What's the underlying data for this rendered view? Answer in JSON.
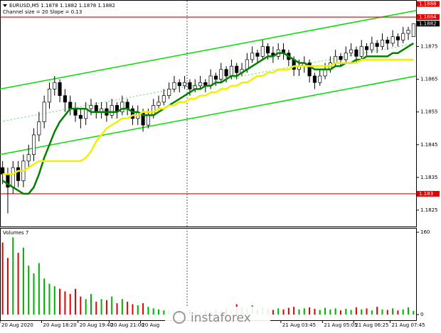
{
  "chart_data": {
    "type": "candlestick",
    "title": "EURUSD,M5  1.1878 1.1882 1.1878 1.1882",
    "subtitle": "Channel size = 20 Slope = 0.13",
    "categories": [
      "20 Aug 2020",
      null,
      null,
      null,
      null,
      null,
      null,
      null,
      "20 Aug 18:20",
      null,
      null,
      null,
      null,
      null,
      null,
      "20 Aug 19:40",
      null,
      null,
      null,
      null,
      null,
      "20 Aug 21:00",
      null,
      null,
      null,
      null,
      null,
      "20 Aug",
      null,
      null,
      null,
      null,
      null,
      null,
      null,
      null,
      null,
      null,
      null,
      null,
      null,
      null,
      null,
      null,
      null,
      null,
      null,
      null,
      null,
      null,
      null,
      null,
      null,
      null,
      "21 Aug 03:45",
      null,
      null,
      null,
      null,
      null,
      null,
      null,
      "21 Aug 05:05",
      null,
      null,
      null,
      null,
      null,
      "21 Aug 06:25",
      null,
      null,
      null,
      null,
      null,
      null,
      "21 Aug 07:45",
      null,
      null,
      null,
      null
    ],
    "open": [
      1.1838,
      1.1836,
      1.1832,
      1.1838,
      1.1834,
      1.184,
      1.1842,
      1.1848,
      1.1852,
      1.1858,
      1.1862,
      1.1864,
      1.186,
      1.1858,
      1.1856,
      1.1854,
      1.1853,
      1.1856,
      1.1857,
      1.1855,
      1.1856,
      1.1854,
      1.1857,
      1.1855,
      1.1858,
      1.1856,
      1.1853,
      1.1855,
      1.1851,
      1.1854,
      1.1857,
      1.1858,
      1.186,
      1.1862,
      1.1864,
      1.1863,
      1.1864,
      1.1862,
      1.1863,
      1.1864,
      1.1863,
      1.1866,
      1.1865,
      1.1868,
      1.1866,
      1.1869,
      1.1867,
      1.1868,
      1.1871,
      1.1873,
      1.1872,
      1.1875,
      1.1873,
      1.1872,
      1.1874,
      1.1873,
      1.1871,
      1.1868,
      1.1869,
      1.187,
      1.1866,
      1.1864,
      1.1866,
      1.1868,
      1.187,
      1.1872,
      1.1871,
      1.1873,
      1.1874,
      1.1872,
      1.1875,
      1.1874,
      1.1876,
      1.1875,
      1.1877,
      1.1876,
      1.1878,
      1.1877,
      1.1879,
      1.1878
    ],
    "high": [
      1.184,
      1.1838,
      1.184,
      1.184,
      1.1842,
      1.1845,
      1.185,
      1.1855,
      1.186,
      1.1864,
      1.1866,
      1.1865,
      1.1862,
      1.186,
      1.1858,
      1.1856,
      1.1858,
      1.1859,
      1.1858,
      1.1858,
      1.1858,
      1.1859,
      1.1858,
      1.186,
      1.1859,
      1.1857,
      1.1857,
      1.1856,
      1.1856,
      1.1859,
      1.186,
      1.1862,
      1.1864,
      1.1866,
      1.1865,
      1.1866,
      1.1865,
      1.1865,
      1.1866,
      1.1865,
      1.1868,
      1.1867,
      1.187,
      1.1869,
      1.1871,
      1.187,
      1.187,
      1.1873,
      1.1875,
      1.1874,
      1.1877,
      1.1876,
      1.1875,
      1.1876,
      1.1876,
      1.1874,
      1.1872,
      1.1871,
      1.1872,
      1.1871,
      1.1867,
      1.1868,
      1.187,
      1.1872,
      1.1874,
      1.1873,
      1.1875,
      1.1876,
      1.1875,
      1.1877,
      1.1876,
      1.1878,
      1.1877,
      1.1879,
      1.1878,
      1.188,
      1.1879,
      1.1881,
      1.1881,
      1.1882
    ],
    "low": [
      1.1833,
      1.1824,
      1.183,
      1.1832,
      1.1832,
      1.1838,
      1.184,
      1.1846,
      1.185,
      1.1856,
      1.186,
      1.1858,
      1.1855,
      1.1854,
      1.1852,
      1.185,
      1.1851,
      1.1854,
      1.1853,
      1.1853,
      1.1852,
      1.1853,
      1.1853,
      1.1854,
      1.1854,
      1.1851,
      1.1851,
      1.1849,
      1.185,
      1.1853,
      1.1856,
      1.1857,
      1.1859,
      1.1861,
      1.1861,
      1.1862,
      1.186,
      1.1861,
      1.1862,
      1.1861,
      1.1862,
      1.1863,
      1.1864,
      1.1864,
      1.1865,
      1.1865,
      1.1866,
      1.1867,
      1.187,
      1.187,
      1.1871,
      1.1871,
      1.187,
      1.1871,
      1.1871,
      1.1869,
      1.1866,
      1.1866,
      1.1867,
      1.1864,
      1.1862,
      1.1863,
      1.1865,
      1.1867,
      1.1869,
      1.1869,
      1.187,
      1.1872,
      1.187,
      1.1871,
      1.1872,
      1.1873,
      1.1873,
      1.1874,
      1.1874,
      1.1875,
      1.1875,
      1.1876,
      1.1877,
      1.1878
    ],
    "close": [
      1.1836,
      1.1832,
      1.1838,
      1.1834,
      1.184,
      1.1842,
      1.1848,
      1.1852,
      1.1858,
      1.1862,
      1.1864,
      1.186,
      1.1858,
      1.1856,
      1.1854,
      1.1853,
      1.1856,
      1.1857,
      1.1855,
      1.1856,
      1.1854,
      1.1857,
      1.1855,
      1.1858,
      1.1856,
      1.1853,
      1.1855,
      1.1851,
      1.1854,
      1.1857,
      1.1858,
      1.186,
      1.1862,
      1.1864,
      1.1863,
      1.1864,
      1.1862,
      1.1863,
      1.1864,
      1.1863,
      1.1866,
      1.1865,
      1.1868,
      1.1866,
      1.1869,
      1.1867,
      1.1868,
      1.1871,
      1.1873,
      1.1872,
      1.1875,
      1.1873,
      1.1872,
      1.1874,
      1.1873,
      1.1871,
      1.1868,
      1.1869,
      1.187,
      1.1866,
      1.1864,
      1.1866,
      1.1868,
      1.187,
      1.1872,
      1.1871,
      1.1873,
      1.1874,
      1.1872,
      1.1875,
      1.1874,
      1.1876,
      1.1875,
      1.1877,
      1.1876,
      1.1878,
      1.1877,
      1.1879,
      1.188,
      1.1882
    ],
    "up_color": "#ffffff",
    "down_color": "#000000",
    "ylim": [
      1.182,
      1.1889
    ],
    "yticks": [
      1.1825,
      1.1835,
      1.1845,
      1.1855,
      1.1865,
      1.1875
    ],
    "moving_averages": [
      {
        "color": "#008000",
        "values": [
          1.1834,
          1.1833,
          1.1832,
          1.1831,
          1.183,
          1.183,
          1.1832,
          1.1836,
          1.1841,
          1.1845,
          1.1849,
          1.1852,
          1.1854,
          1.1856,
          1.1856,
          1.1856,
          1.1856,
          1.1855,
          1.1855,
          1.1855,
          1.1855,
          1.1855,
          1.1855,
          1.1856,
          1.1856,
          1.1855,
          1.1855,
          1.1854,
          1.1854,
          1.1854,
          1.1855,
          1.1856,
          1.1857,
          1.1858,
          1.1859,
          1.186,
          1.1861,
          1.1862,
          1.1862,
          1.1863,
          1.1863,
          1.1864,
          1.1864,
          1.1865,
          1.1866,
          1.1866,
          1.1867,
          1.1868,
          1.1869,
          1.187,
          1.1871,
          1.1872,
          1.1872,
          1.1873,
          1.1873,
          1.1872,
          1.1871,
          1.187,
          1.187,
          1.1869,
          1.1868,
          1.1868,
          1.1868,
          1.1868,
          1.1869,
          1.1869,
          1.187,
          1.187,
          1.1871,
          1.1871,
          1.1872,
          1.1872,
          1.1872,
          1.1872,
          1.1872,
          1.1873,
          1.1873,
          1.1874,
          1.1875,
          1.1876
        ]
      },
      {
        "color": "#f0f000",
        "values": [
          1.1836,
          1.1836,
          1.1836,
          1.1837,
          1.1837,
          1.1838,
          1.1839,
          1.184,
          1.184,
          1.184,
          1.184,
          1.184,
          1.184,
          1.184,
          1.184,
          1.184,
          1.1841,
          1.1843,
          1.1846,
          1.1848,
          1.185,
          1.1851,
          1.1852,
          1.1853,
          1.1853,
          1.1854,
          1.1854,
          1.1855,
          1.1855,
          1.1855,
          1.1856,
          1.1856,
          1.1857,
          1.1857,
          1.1858,
          1.1858,
          1.1859,
          1.1859,
          1.186,
          1.186,
          1.1861,
          1.1861,
          1.1862,
          1.1862,
          1.1863,
          1.1863,
          1.1864,
          1.1864,
          1.1865,
          1.1866,
          1.1866,
          1.1867,
          1.1867,
          1.1868,
          1.1868,
          1.1868,
          1.1869,
          1.1869,
          1.1869,
          1.1869,
          1.1869,
          1.1869,
          1.1869,
          1.1869,
          1.187,
          1.187,
          1.187,
          1.187,
          1.187,
          1.1871,
          1.1871,
          1.1871,
          1.1871,
          1.1871,
          1.1871,
          1.1871,
          1.1871,
          1.1871,
          1.1871,
          1.1871
        ]
      }
    ],
    "channel": {
      "color": "#00e000",
      "upper": [
        1.1862,
        1.1886
      ],
      "middle": [
        1.1852,
        1.1876
      ],
      "lower": [
        1.1842,
        1.1866
      ]
    },
    "levels": [
      1.1884,
      1.183
    ],
    "level_color": "#e00000",
    "price_markers": [
      {
        "value": 1.1888,
        "color": "#e00000"
      },
      {
        "value": 1.1884,
        "color": "#e00000"
      },
      {
        "value": 1.1882,
        "color": "#000000"
      },
      {
        "value": 1.183,
        "color": "#e00000"
      }
    ],
    "volume": {
      "label": "Volumes 7",
      "values": [
        140,
        110,
        150,
        120,
        130,
        95,
        80,
        100,
        70,
        60,
        55,
        50,
        45,
        40,
        50,
        35,
        30,
        40,
        25,
        30,
        28,
        35,
        22,
        30,
        25,
        20,
        18,
        22,
        15,
        12,
        10,
        8,
        10,
        7,
        8,
        6,
        9,
        7,
        5,
        8,
        6,
        10,
        8,
        12,
        9,
        20,
        15,
        12,
        18,
        10,
        14,
        11,
        9,
        12,
        10,
        13,
        15,
        10,
        12,
        14,
        11,
        9,
        13,
        10,
        12,
        8,
        11,
        9,
        14,
        10,
        12,
        8,
        15,
        10,
        9,
        12,
        8,
        10,
        14,
        7
      ],
      "ylim": [
        0,
        167
      ],
      "yticks": [
        0,
        160
      ],
      "up_color": "#00b000",
      "down_color": "#e00000"
    },
    "watermark": "instaforex"
  }
}
